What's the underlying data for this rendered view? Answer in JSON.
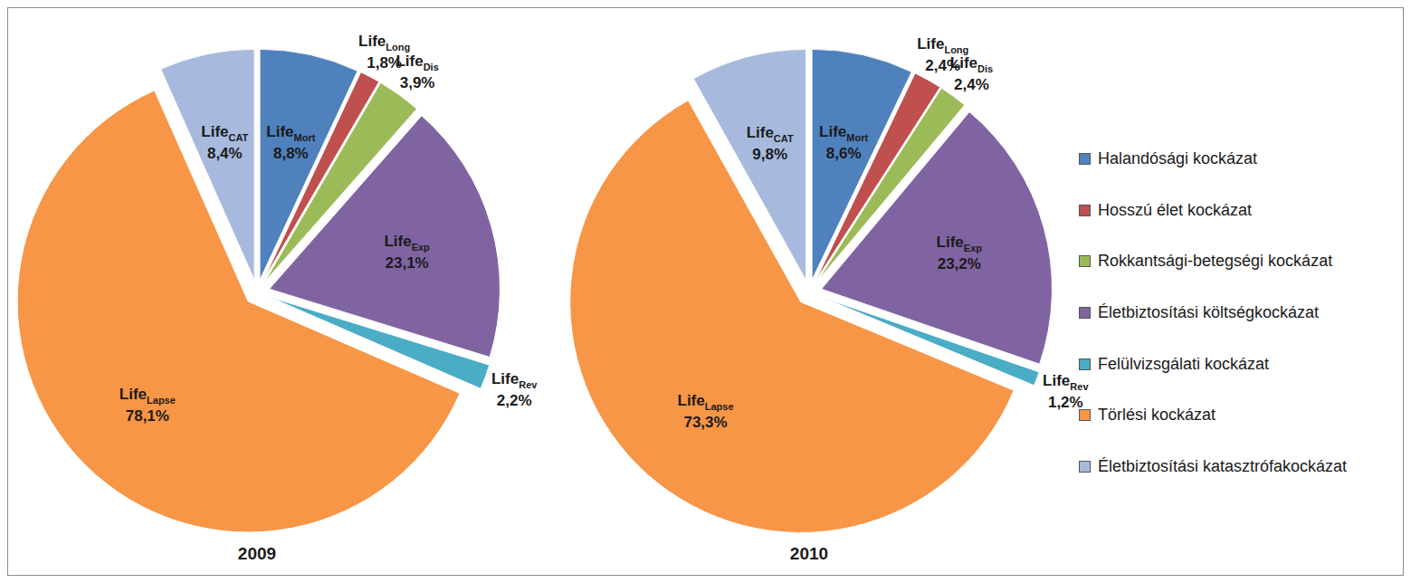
{
  "chart_data": [
    {
      "type": "pie",
      "title": "2009",
      "categories": [
        "Halandósági kockázat",
        "Hosszú élet kockázat",
        "Rokkantsági-betegségi kockázat",
        "Életbiztosítási költségkockázat",
        "Felülvizsgálati kockázat",
        "Törlési kockázat",
        "Életbiztosítási katasztrófakockázat"
      ],
      "slice_labels": [
        {
          "text": "Life",
          "sub": "Mort"
        },
        {
          "text": "Life",
          "sub": "Long"
        },
        {
          "text": "Life",
          "sub": "Dis"
        },
        {
          "text": "Life",
          "sub": "Exp"
        },
        {
          "text": "Life",
          "sub": "Rev"
        },
        {
          "text": "Life",
          "sub": "Lapse"
        },
        {
          "text": "Life",
          "sub": "CAT"
        }
      ],
      "values": [
        8.8,
        1.8,
        3.9,
        23.1,
        2.2,
        78.1,
        8.4
      ],
      "value_labels": [
        "8,8%",
        "1,8%",
        "3,9%",
        "23,1%",
        "2,2%",
        "78,1%",
        "8,4%"
      ],
      "colors": [
        "#4f81bd",
        "#c0504d",
        "#9bbb59",
        "#8064a2",
        "#4bacc6",
        "#f79646",
        "#a7bade"
      ],
      "data_labels": true
    },
    {
      "type": "pie",
      "title": "2010",
      "categories": [
        "Halandósági kockázat",
        "Hosszú élet kockázat",
        "Rokkantsági-betegségi kockázat",
        "Életbiztosítási költségkockázat",
        "Felülvizsgálati kockázat",
        "Törlési kockázat",
        "Életbiztosítási katasztrófakockázat"
      ],
      "slice_labels": [
        {
          "text": "Life",
          "sub": "Mort"
        },
        {
          "text": "Life",
          "sub": "Long"
        },
        {
          "text": "Life",
          "sub": "Dis"
        },
        {
          "text": "Life",
          "sub": "Exp"
        },
        {
          "text": "Life",
          "sub": "Rev"
        },
        {
          "text": "Life",
          "sub": "Lapse"
        },
        {
          "text": "Life",
          "sub": "CAT"
        }
      ],
      "values": [
        8.6,
        2.4,
        2.4,
        23.2,
        1.2,
        73.3,
        9.8
      ],
      "value_labels": [
        "8,6%",
        "2,4%",
        "2,4%",
        "23,2%",
        "1,2%",
        "73,3%",
        "9,8%"
      ],
      "colors": [
        "#4f81bd",
        "#c0504d",
        "#9bbb59",
        "#8064a2",
        "#4bacc6",
        "#f79646",
        "#a7bade"
      ],
      "data_labels": true,
      "legend": "right"
    }
  ]
}
